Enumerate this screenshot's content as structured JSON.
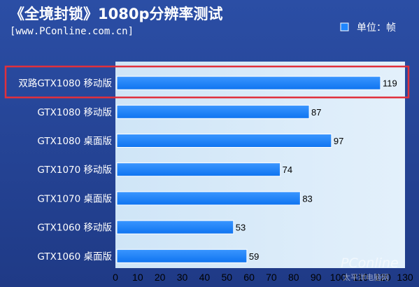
{
  "chart_data": {
    "type": "bar",
    "orientation": "horizontal",
    "title": "《全境封锁》1080p分辨率测试",
    "subtitle": "[www.PConline.com.cn]",
    "legend": {
      "label": "单位：帧",
      "position": "top-right",
      "color": "#1f86ff"
    },
    "categories": [
      "双路GTX1080 移动版",
      "GTX1080 移动版",
      "GTX1080 桌面版",
      "GTX1070 移动版",
      "GTX1070 桌面版",
      "GTX1060 移动版",
      "GTX1060 桌面版"
    ],
    "values": [
      119,
      87,
      97,
      74,
      83,
      53,
      59
    ],
    "xlim": [
      0,
      130
    ],
    "xticks": [
      "0",
      "10",
      "20",
      "30",
      "40",
      "50",
      "60",
      "70",
      "80",
      "90",
      "100",
      "110",
      "120",
      "130"
    ],
    "highlight_index": 0,
    "grid": false
  },
  "watermark": {
    "brand": "PConline",
    "sub": "太平洋电脑网"
  },
  "colors": {
    "background": "#2a479a",
    "plot": "#d6e9f8",
    "bar": "#1f86ff",
    "bar_edge": "#ffffff",
    "highlight": "#e0303c"
  }
}
